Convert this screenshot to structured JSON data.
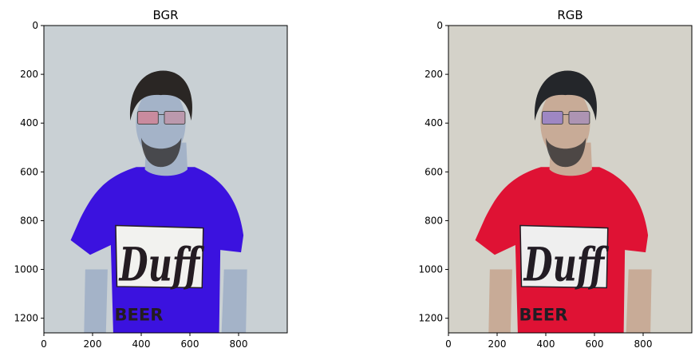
{
  "chart_data": [
    {
      "type": "image",
      "title": "BGR",
      "xlim": [
        0,
        1000
      ],
      "ylim": [
        1260,
        0
      ],
      "xticks": [
        0,
        200,
        400,
        600,
        800
      ],
      "yticks": [
        0,
        200,
        400,
        600,
        800,
        1000,
        1200
      ],
      "colors": {
        "background": "#c9d0d4",
        "skin": "#a4b3c8",
        "shirt": "#3b12df",
        "glasses_tint": "#e86a7c",
        "hair": "#2a2624",
        "logo_panel": "#f2f2ef",
        "logo_ink": "#241c22"
      },
      "logo_text": "Duff",
      "shirt_text": "BEER"
    },
    {
      "type": "image",
      "title": "RGB",
      "xlim": [
        0,
        1000
      ],
      "ylim": [
        1260,
        0
      ],
      "xticks": [
        0,
        200,
        400,
        600,
        800
      ],
      "yticks": [
        0,
        200,
        400,
        600,
        800,
        1000,
        1200
      ],
      "colors": {
        "background": "#d4d2c9",
        "skin": "#c8ab97",
        "shirt": "#df1234",
        "glasses_tint": "#7c6ae8",
        "hair": "#24262a",
        "logo_panel": "#efefef",
        "logo_ink": "#221c24"
      },
      "logo_text": "Duff",
      "shirt_text": "BEER"
    }
  ]
}
